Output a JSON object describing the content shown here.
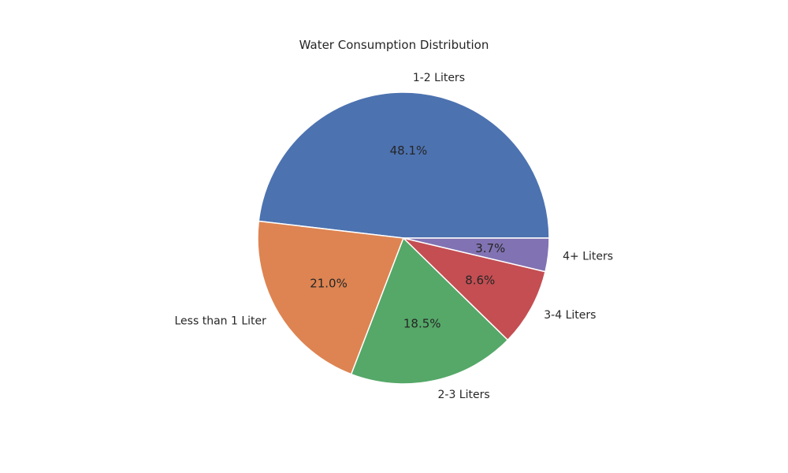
{
  "chart_data": {
    "type": "pie",
    "title": "Water Consumption Distribution",
    "categories": [
      "1-2 Liters",
      "Less than 1 Liter",
      "2-3 Liters",
      "3-4 Liters",
      "4+ Liters"
    ],
    "values": [
      48.1,
      21.0,
      18.5,
      8.6,
      3.7
    ],
    "value_labels": [
      "48.1%",
      "21.0%",
      "18.5%",
      "8.6%",
      "3.7%"
    ],
    "colors": [
      "#4c72b0",
      "#dd8452",
      "#55a868",
      "#c44e52",
      "#8172b3"
    ],
    "start_angle_deg": 0,
    "direction": "counterclockwise",
    "legend": "none"
  }
}
